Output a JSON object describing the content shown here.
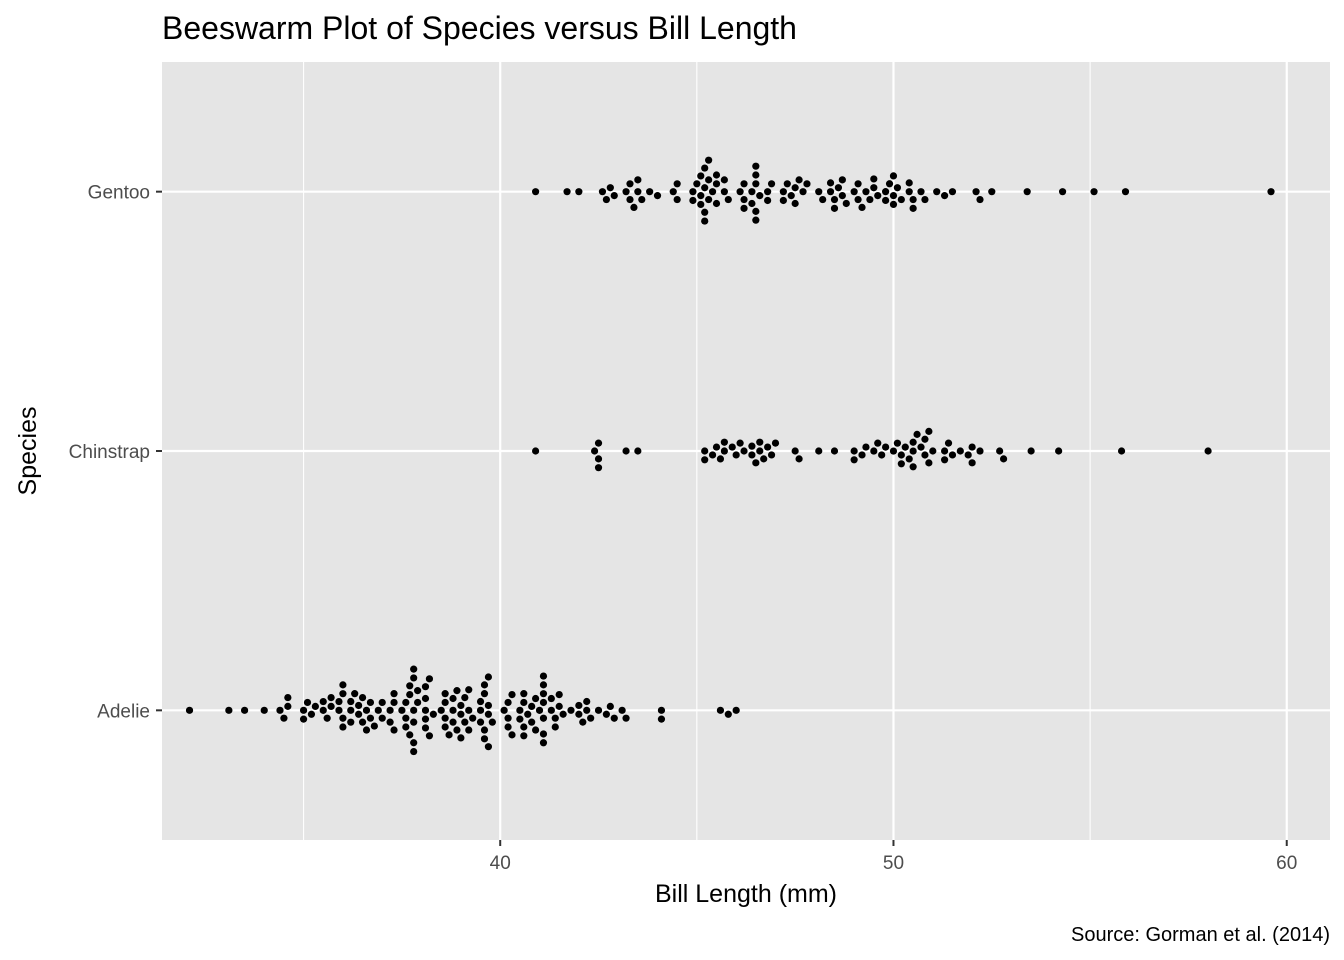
{
  "chart_data": {
    "type": "scatter",
    "subtype": "beeswarm",
    "title": "Beeswarm Plot of Species versus Bill Length",
    "xlabel": "Bill Length (mm)",
    "ylabel": "Species",
    "caption": "Source: Gorman et al. (2014)",
    "xlim": [
      31.4,
      61.1
    ],
    "xticks": [
      40,
      50,
      60
    ],
    "categories": [
      "Adelie",
      "Chinstrap",
      "Gentoo"
    ],
    "grid": true,
    "legend": "none",
    "colors": {
      "panel": "#e5e5e5",
      "grid": "#ffffff",
      "point": "#000000"
    },
    "series": [
      {
        "name": "Adelie",
        "values": [
          32.1,
          33.1,
          33.5,
          34.0,
          34.4,
          34.5,
          34.6,
          34.6,
          35.0,
          35.0,
          35.1,
          35.2,
          35.3,
          35.5,
          35.5,
          35.6,
          35.7,
          35.7,
          35.9,
          35.9,
          36.0,
          36.0,
          36.0,
          36.0,
          36.2,
          36.2,
          36.2,
          36.3,
          36.4,
          36.4,
          36.5,
          36.5,
          36.6,
          36.6,
          36.7,
          36.7,
          36.8,
          36.9,
          37.0,
          37.0,
          37.2,
          37.2,
          37.3,
          37.3,
          37.3,
          37.5,
          37.6,
          37.6,
          37.6,
          37.7,
          37.7,
          37.7,
          37.8,
          37.8,
          37.8,
          37.8,
          37.8,
          37.8,
          37.9,
          37.9,
          38.1,
          38.1,
          38.1,
          38.1,
          38.1,
          38.2,
          38.2,
          38.3,
          38.5,
          38.6,
          38.6,
          38.6,
          38.6,
          38.7,
          38.8,
          38.8,
          38.8,
          38.9,
          38.9,
          39.0,
          39.0,
          39.0,
          39.1,
          39.1,
          39.2,
          39.2,
          39.2,
          39.3,
          39.5,
          39.5,
          39.5,
          39.6,
          39.6,
          39.6,
          39.6,
          39.7,
          39.7,
          39.7,
          39.7,
          39.8,
          40.1,
          40.2,
          40.2,
          40.2,
          40.3,
          40.3,
          40.5,
          40.5,
          40.6,
          40.6,
          40.6,
          40.6,
          40.7,
          40.8,
          40.8,
          40.9,
          40.9,
          41.0,
          41.1,
          41.1,
          41.1,
          41.1,
          41.1,
          41.1,
          41.1,
          41.3,
          41.3,
          41.4,
          41.4,
          41.5,
          41.5,
          41.6,
          41.8,
          42.0,
          42.0,
          42.1,
          42.2,
          42.2,
          42.3,
          42.5,
          42.7,
          42.8,
          42.9,
          43.1,
          43.2,
          44.1,
          44.1,
          45.6,
          45.8,
          46.0
        ]
      },
      {
        "name": "Chinstrap",
        "values": [
          40.9,
          42.4,
          42.5,
          42.5,
          42.5,
          43.2,
          43.5,
          45.2,
          45.2,
          45.4,
          45.5,
          45.6,
          45.7,
          45.7,
          45.9,
          46.0,
          46.1,
          46.2,
          46.4,
          46.4,
          46.5,
          46.6,
          46.6,
          46.7,
          46.8,
          46.9,
          47.0,
          47.5,
          47.6,
          48.1,
          48.5,
          49.0,
          49.0,
          49.2,
          49.3,
          49.5,
          49.6,
          49.7,
          49.8,
          50.0,
          50.1,
          50.2,
          50.2,
          50.3,
          50.4,
          50.5,
          50.5,
          50.5,
          50.6,
          50.7,
          50.8,
          50.8,
          50.9,
          50.9,
          51.0,
          51.3,
          51.3,
          51.4,
          51.5,
          51.7,
          51.9,
          52.0,
          52.0,
          52.2,
          52.7,
          52.8,
          53.5,
          54.2,
          55.8,
          58.0
        ]
      },
      {
        "name": "Gentoo",
        "values": [
          40.9,
          41.7,
          42.0,
          42.6,
          42.7,
          42.8,
          42.9,
          43.2,
          43.3,
          43.3,
          43.4,
          43.5,
          43.5,
          43.6,
          43.8,
          44.0,
          44.4,
          44.5,
          44.5,
          44.9,
          44.9,
          45.0,
          45.1,
          45.1,
          45.1,
          45.2,
          45.2,
          45.2,
          45.2,
          45.3,
          45.3,
          45.3,
          45.4,
          45.5,
          45.5,
          45.5,
          45.7,
          45.7,
          45.8,
          46.1,
          46.2,
          46.2,
          46.2,
          46.4,
          46.4,
          46.5,
          46.5,
          46.5,
          46.5,
          46.5,
          46.6,
          46.8,
          46.8,
          46.9,
          47.2,
          47.2,
          47.3,
          47.4,
          47.5,
          47.5,
          47.6,
          47.7,
          47.8,
          48.1,
          48.2,
          48.4,
          48.4,
          48.5,
          48.5,
          48.6,
          48.7,
          48.7,
          48.8,
          49.0,
          49.1,
          49.1,
          49.2,
          49.3,
          49.4,
          49.5,
          49.5,
          49.6,
          49.8,
          49.8,
          49.9,
          50.0,
          50.0,
          50.0,
          50.1,
          50.2,
          50.4,
          50.4,
          50.5,
          50.5,
          50.7,
          50.8,
          51.1,
          51.3,
          51.5,
          52.1,
          52.2,
          52.5,
          53.4,
          54.3,
          55.1,
          55.9,
          59.6
        ]
      }
    ]
  }
}
